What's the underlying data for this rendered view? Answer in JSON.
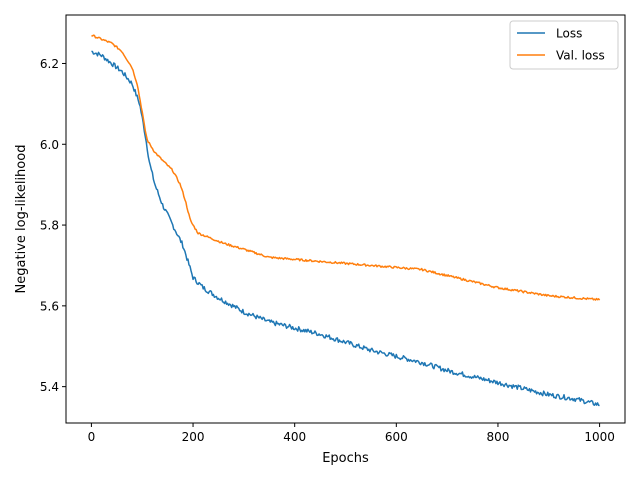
{
  "chart_data": {
    "type": "line",
    "xlabel": "Epochs",
    "ylabel": "Negative log-likelihood",
    "xlim": [
      -50,
      1050
    ],
    "ylim": [
      5.31,
      6.32
    ],
    "xticks": [
      0,
      200,
      400,
      600,
      800,
      1000
    ],
    "xtick_labels": [
      "0",
      "200",
      "400",
      "600",
      "800",
      "1000"
    ],
    "yticks": [
      5.4,
      5.6,
      5.8,
      6.0,
      6.2
    ],
    "ytick_labels": [
      "5.4",
      "5.6",
      "5.8",
      "6.0",
      "6.2"
    ],
    "grid": false,
    "legend_position": "top-right",
    "series": [
      {
        "name": "Loss",
        "color": "#1f77b4",
        "x": [
          0,
          20,
          40,
          60,
          80,
          95,
          105,
          110,
          115,
          125,
          140,
          160,
          180,
          190,
          200,
          220,
          250,
          300,
          350,
          400,
          450,
          500,
          550,
          600,
          650,
          700,
          750,
          800,
          850,
          900,
          950,
          1000
        ],
        "y": [
          6.23,
          6.22,
          6.2,
          6.18,
          6.15,
          6.1,
          6.03,
          5.99,
          5.95,
          5.9,
          5.85,
          5.8,
          5.75,
          5.71,
          5.67,
          5.645,
          5.62,
          5.585,
          5.56,
          5.545,
          5.53,
          5.51,
          5.49,
          5.475,
          5.46,
          5.44,
          5.425,
          5.41,
          5.395,
          5.38,
          5.37,
          5.355
        ]
      },
      {
        "name": "Val. loss",
        "color": "#ff7f0e",
        "x": [
          0,
          20,
          40,
          60,
          80,
          90,
          100,
          105,
          110,
          115,
          125,
          140,
          160,
          175,
          185,
          195,
          210,
          230,
          260,
          300,
          350,
          400,
          450,
          500,
          550,
          600,
          650,
          700,
          750,
          800,
          850,
          900,
          950,
          1000
        ],
        "y": [
          6.27,
          6.26,
          6.25,
          6.23,
          6.19,
          6.15,
          6.08,
          6.04,
          6.01,
          6.0,
          5.98,
          5.96,
          5.935,
          5.9,
          5.86,
          5.81,
          5.78,
          5.77,
          5.755,
          5.74,
          5.72,
          5.715,
          5.71,
          5.705,
          5.7,
          5.695,
          5.69,
          5.675,
          5.66,
          5.645,
          5.635,
          5.625,
          5.62,
          5.615
        ]
      }
    ]
  }
}
